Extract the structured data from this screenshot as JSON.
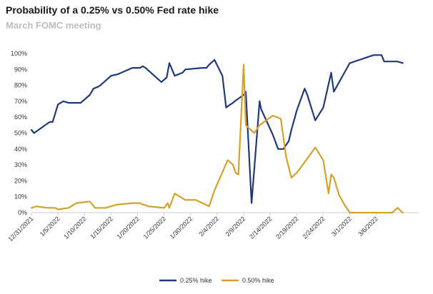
{
  "header": {
    "title": "Probability of a 0.25% vs 0.50% Fed rate hike",
    "subtitle": "March FOMC meeting"
  },
  "colors": {
    "navy": "#1f3a7a",
    "gold": "#d4a12a",
    "axis": "#cccccc"
  },
  "chart_data": {
    "type": "line",
    "title": "Probability of a 0.25% vs 0.50% Fed rate hike",
    "subtitle": "March FOMC meeting",
    "x_tick_labels": [
      "12/31/2021",
      "1/5/2022",
      "1/10/2022",
      "1/15/2022",
      "1/20/2022",
      "1/25/2022",
      "1/30/2022",
      "2/4/2022",
      "2/9/2022",
      "2/14/2022",
      "2/19/2022",
      "2/24/2022",
      "3/1/2022",
      "3/6/2022"
    ],
    "y_tick_labels": [
      "0%",
      "10%",
      "20%",
      "30%",
      "40%",
      "50%",
      "60%",
      "70%",
      "80%",
      "90%",
      "100%"
    ],
    "ylim": [
      0,
      100
    ],
    "x_unit": "days from 12/31/2021",
    "xlim": [
      0,
      73
    ],
    "legend_position": "bottom",
    "series": [
      {
        "name": "0.25% hike",
        "color": "#1f3a7a",
        "x": [
          0,
          0.5,
          3,
          3.5,
          4,
          5,
          6,
          7,
          7.5,
          9.3,
          11,
          11.7,
          12.5,
          13,
          15,
          16.3,
          19,
          20.3,
          20.5,
          21,
          21.5,
          24.5,
          25.5,
          26,
          27,
          28.5,
          29,
          32.2,
          33,
          33.5,
          34.5,
          36,
          36.7,
          37.5,
          38,
          38.3,
          40,
          40.4,
          41.5,
          43,
          43.3,
          45.5,
          46.5,
          47.5,
          48.5,
          49,
          50,
          51.5,
          52,
          53.5,
          55,
          56.5,
          57,
          60,
          64.5,
          66,
          66.5,
          67,
          69,
          70
        ],
        "y": [
          52,
          50,
          56,
          57,
          57,
          68,
          70,
          69,
          69,
          69,
          74,
          78,
          79,
          80,
          86,
          87,
          91,
          91,
          91,
          92,
          91,
          82,
          85,
          94,
          86,
          88,
          90,
          91,
          91,
          93,
          96,
          86,
          66,
          68,
          69,
          70,
          74,
          76,
          6,
          70,
          65,
          49,
          40,
          40,
          45,
          52,
          64,
          78,
          74,
          58,
          66,
          88,
          76,
          94,
          99,
          99,
          95,
          95,
          95,
          94
        ]
      },
      {
        "name": "0.50% hike",
        "color": "#d4a12a",
        "x": [
          0,
          1,
          3,
          4,
          4.5,
          5,
          7,
          8.5,
          11,
          12,
          14,
          16,
          19,
          20.5,
          21,
          21.3,
          22,
          25,
          25.7,
          26,
          27,
          29,
          31,
          33.5,
          34.5,
          37,
          38,
          38.5,
          39,
          40,
          40.4,
          42,
          43,
          45.5,
          47,
          48,
          49,
          50,
          52,
          53.5,
          55,
          56,
          56.5,
          57,
          58,
          59,
          60,
          62,
          64.5,
          66,
          66.5,
          67,
          68,
          69,
          70
        ],
        "y": [
          3,
          4,
          3,
          3,
          3,
          2,
          3,
          6,
          7,
          3,
          3,
          5,
          6,
          6,
          5,
          5,
          4,
          3,
          6,
          3,
          12,
          8,
          8,
          4,
          14,
          33,
          30,
          25,
          24,
          93,
          55,
          50,
          55,
          61,
          59,
          35,
          22,
          25,
          34,
          41,
          33,
          12,
          24,
          22,
          11,
          5,
          0,
          0,
          0,
          0,
          0,
          0,
          0,
          3,
          0
        ]
      }
    ]
  }
}
